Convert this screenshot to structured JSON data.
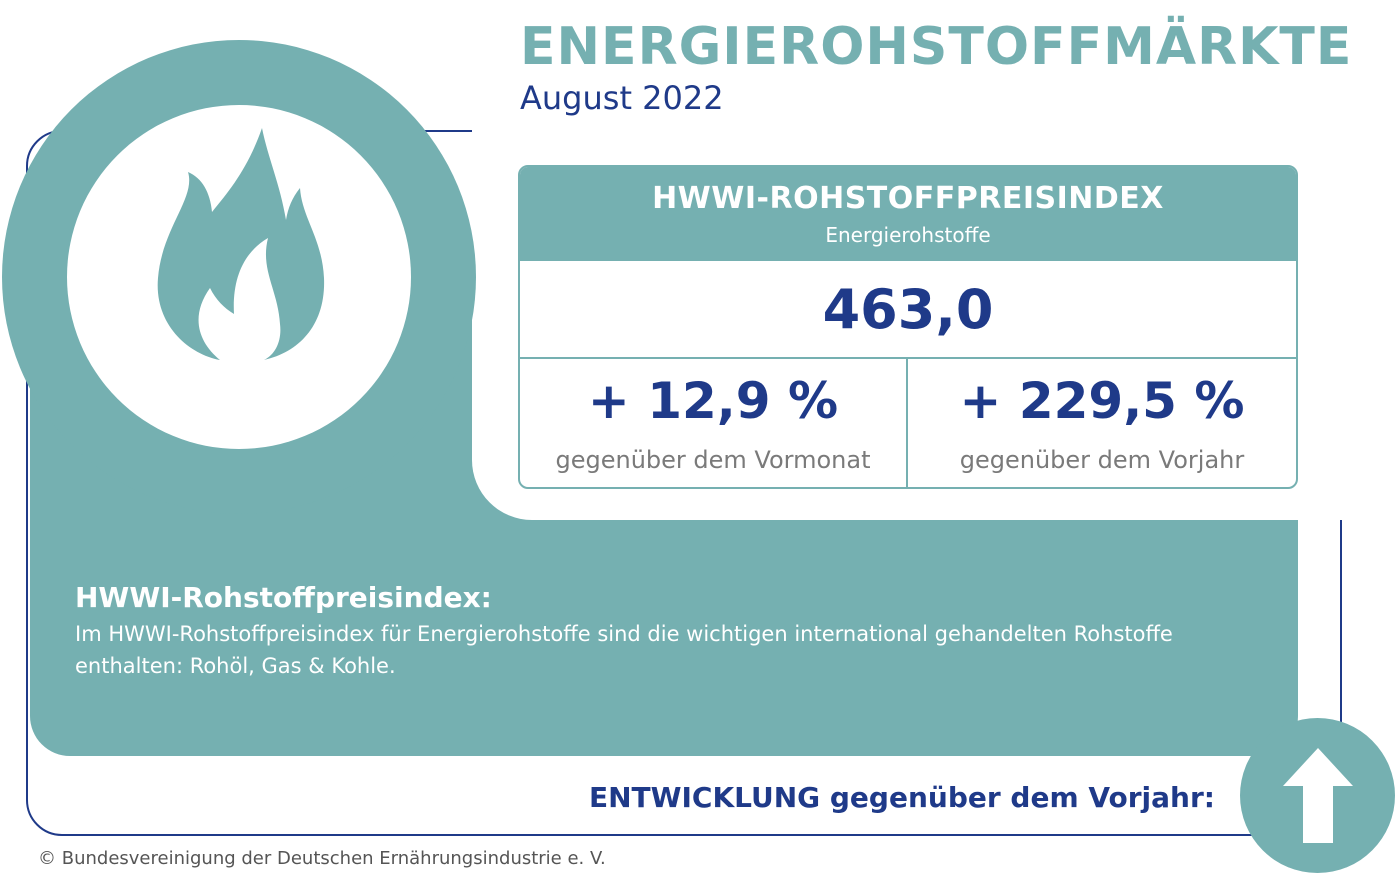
{
  "header": {
    "title": "ENERGIEROHSTOFFMÄRKTE",
    "subtitle": "August 2022"
  },
  "index_box": {
    "title": "HWWI-ROHSTOFFPREISINDEX",
    "subtitle": "Energierohstoffe",
    "value": "463,0",
    "monthly_change": "+ 12,9 %",
    "monthly_change_label": "gegenüber dem Vormonat",
    "yearly_change": "+ 229,5 %",
    "yearly_change_label": "gegenüber dem Vorjahr"
  },
  "description": {
    "heading": "HWWI-Rohstoffpreisindex:",
    "body": "Im HWWI-Rohstoffpreisindex für Energierohstoffe sind die wichtigen international gehandelten Rohstoffe enthalten: Rohöl, Gas & Kohle."
  },
  "trend": {
    "label": "ENTWICKLUNG gegenüber dem Vorjahr:",
    "direction_icon": "arrow-up-icon"
  },
  "icons": {
    "main": "flame-icon"
  },
  "footer": {
    "copyright": "© Bundesvereinigung der Deutschen Ernährungsindustrie e. V."
  },
  "colors": {
    "accent_teal": "#75b0b1",
    "brand_navy": "#1f3a89",
    "muted_gray": "#7a7a7a"
  }
}
